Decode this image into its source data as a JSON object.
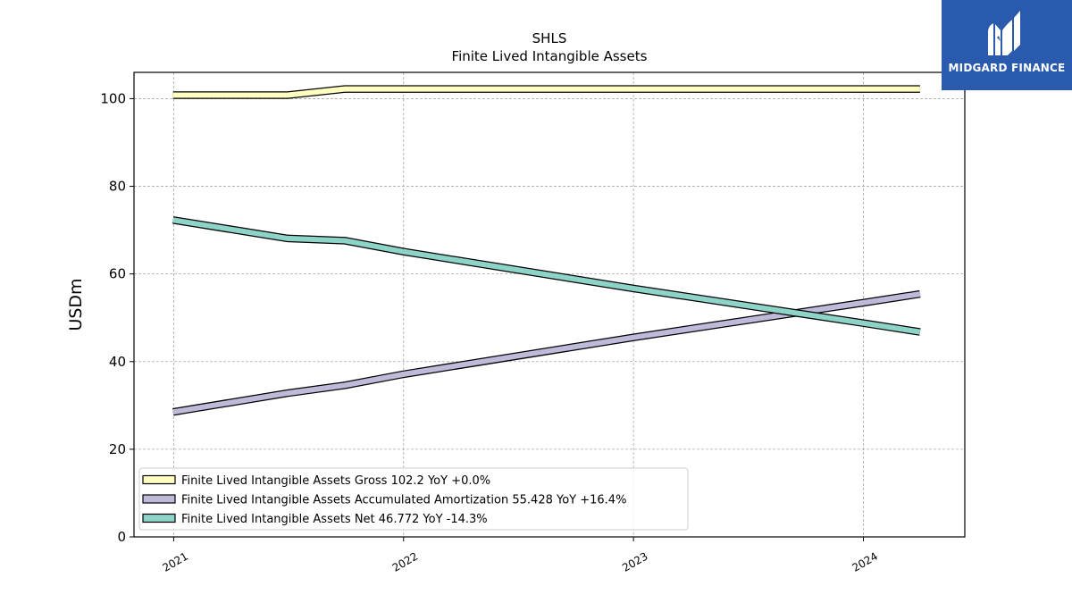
{
  "chart_data": {
    "type": "line",
    "title": "SHLS",
    "subtitle": "Finite Lived Intangible Assets",
    "ylabel": "USDm",
    "xlabel": "",
    "ylim": [
      0,
      106
    ],
    "xlim": [
      "2020-10-30",
      "2024-06-10"
    ],
    "yticks": [
      0,
      20,
      40,
      60,
      80,
      100
    ],
    "xticks": [
      "2021",
      "2022",
      "2023",
      "2024"
    ],
    "grid": true,
    "legend_position": "bottom-left",
    "series": [
      {
        "name": "Finite Lived Intangible Assets Gross",
        "legend_label": "Finite Lived Intangible Assets Gross  102.2 YoY +0.0%",
        "color": "#ffffbf",
        "x": [
          "2020-12-31",
          "2021-07-01",
          "2021-09-30",
          "2021-12-31",
          "2022-12-31",
          "2023-12-31",
          "2024-03-31"
        ],
        "values": [
          100.8,
          100.8,
          102.2,
          102.2,
          102.2,
          102.2,
          102.2
        ]
      },
      {
        "name": "Finite Lived Intangible Assets Accumulated Amortization",
        "legend_label": "Finite Lived Intangible Assets Accumulated Amortization  55.428 YoY +16.4%",
        "color": "#bebada",
        "x": [
          "2020-12-31",
          "2021-07-01",
          "2021-09-30",
          "2021-12-31",
          "2022-12-31",
          "2023-12-31",
          "2024-03-31"
        ],
        "values": [
          28.5,
          32.8,
          34.6,
          37.1,
          45.5,
          53.4,
          55.428
        ]
      },
      {
        "name": "Finite Lived Intangible Assets Net",
        "legend_label": "Finite Lived Intangible Assets Net  46.772 YoY -14.3%",
        "color": "#8dd3c7",
        "x": [
          "2020-12-31",
          "2021-07-01",
          "2021-09-30",
          "2021-12-31",
          "2022-12-31",
          "2023-12-31",
          "2024-03-31"
        ],
        "values": [
          72.3,
          68.1,
          67.6,
          65.1,
          56.7,
          48.8,
          46.772
        ]
      }
    ]
  },
  "logo": {
    "text": "MIDGARD FINANCE",
    "color": "#2a5aad"
  }
}
